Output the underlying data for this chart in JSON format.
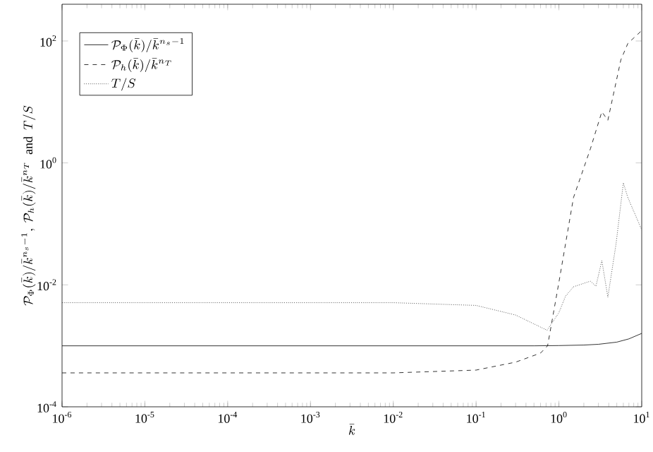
{
  "chart_data": {
    "type": "line",
    "xlabel": "\\bar{k}",
    "ylabel": "\\mathcal{P}_\\Phi(\\bar{k})/\\bar{k}^{n_s-1},\\ \\mathcal{P}_h(\\bar{k})/\\bar{k}^{n_T}\\ \\ \\mathrm{and}\\ \\ T/S",
    "log": "xy",
    "xlim": [
      1e-06,
      10
    ],
    "ylim": [
      0.0001,
      400
    ],
    "xticks": [
      {
        "value": 1e-06,
        "label": "10$^{-6}$"
      },
      {
        "value": 1e-05,
        "label": "10$^{-5}$"
      },
      {
        "value": 0.0001,
        "label": "10$^{-4}$"
      },
      {
        "value": 0.001,
        "label": "10$^{-3}$"
      },
      {
        "value": 0.01,
        "label": "10$^{-2}$"
      },
      {
        "value": 0.1,
        "label": "10$^{-1}$"
      },
      {
        "value": 1,
        "label": "10$^{0}$"
      },
      {
        "value": 10,
        "label": "10$^{1}$"
      }
    ],
    "yticks": [
      {
        "value": 0.0001,
        "label": "10$^{-4}$"
      },
      {
        "value": 0.01,
        "label": "10$^{-2}$"
      },
      {
        "value": 1,
        "label": "10$^{0}$"
      },
      {
        "value": 100,
        "label": "10$^{2}$"
      }
    ],
    "legend": "top left",
    "series": [
      {
        "name": "\\mathcal{P}_\\Phi(\\bar{k})/\\bar{k}^{n_s-1}",
        "color": "#000000",
        "line_style": "solid",
        "x": [
          1e-06,
          0.01,
          0.5,
          1,
          2,
          3,
          5,
          7,
          10
        ],
        "values": [
          0.001,
          0.001,
          0.001,
          0.00101,
          0.00103,
          0.00106,
          0.00115,
          0.0013,
          0.0016
        ]
      },
      {
        "name": "\\mathcal{P}_h(\\bar{k})/\\bar{k}^{n_T}",
        "color": "#000000",
        "line_style": "dashed",
        "x": [
          1e-06,
          0.01,
          0.1,
          0.3,
          0.6,
          0.73,
          1.0,
          1.5,
          2.4,
          3.3,
          3.9,
          5.6,
          6.8,
          10
        ],
        "values": [
          0.00036,
          0.00036,
          0.0004,
          0.00054,
          0.00076,
          0.001,
          0.011,
          0.27,
          1.7,
          6.9,
          5.0,
          49,
          91,
          148
        ]
      },
      {
        "name": "T/S",
        "color": "#000000",
        "line_style": "dotted",
        "x": [
          1e-06,
          0.01,
          0.1,
          0.3,
          0.72,
          1.0,
          1.2,
          1.5,
          2.4,
          2.8,
          3.3,
          3.9,
          4.9,
          6.0,
          6.8,
          10
        ],
        "values": [
          0.0051,
          0.0051,
          0.0046,
          0.0032,
          0.0018,
          0.0035,
          0.0065,
          0.0093,
          0.0115,
          0.0095,
          0.025,
          0.0063,
          0.047,
          0.47,
          0.27,
          0.08
        ]
      }
    ]
  }
}
